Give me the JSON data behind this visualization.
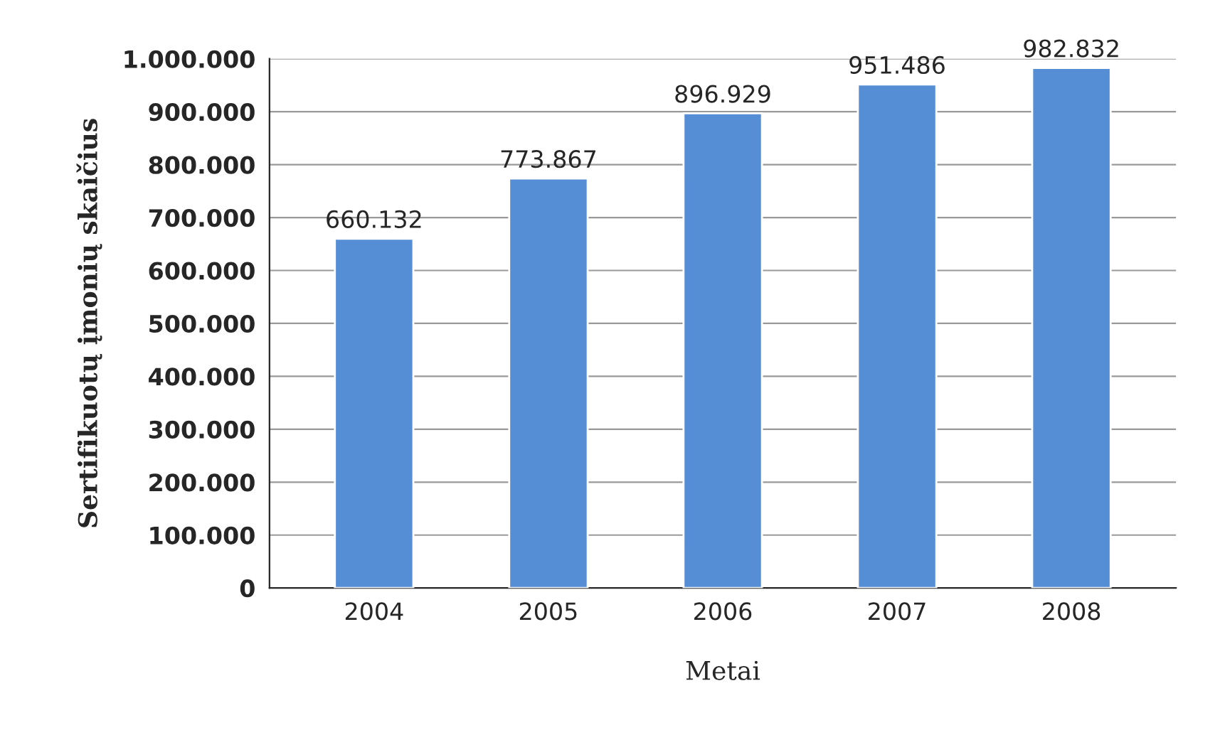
{
  "chart_data": {
    "type": "bar",
    "xlabel": "Metai",
    "ylabel": "Sertifikuotų įmonių skaičius",
    "categories": [
      "2004",
      "2005",
      "2006",
      "2007",
      "2008"
    ],
    "values": [
      660132,
      773867,
      896929,
      951486,
      982832
    ],
    "value_labels": [
      "660.132",
      "773.867",
      "896.929",
      "951.486",
      "982.832"
    ],
    "color": "#558ed5",
    "ylim": [
      0,
      1000000
    ],
    "yticks": [
      0,
      {
        "value": 100000,
        "label": "100.000"
      },
      {
        "value": 200000,
        "label": "200.000"
      },
      {
        "value": 300000,
        "label": "300.000"
      },
      {
        "value": 400000,
        "label": "400.000"
      },
      {
        "value": 500000,
        "label": "500.000"
      },
      {
        "value": 600000,
        "label": "600.000"
      },
      {
        "value": 700000,
        "label": "700.000"
      },
      {
        "value": 800000,
        "label": "800.000"
      },
      {
        "value": 900000,
        "label": "900.000"
      },
      {
        "value": 1000000,
        "label": "1.000.000"
      }
    ],
    "grid": "y"
  }
}
